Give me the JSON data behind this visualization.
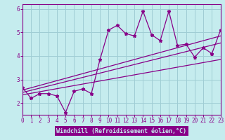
{
  "xlabel": "Windchill (Refroidissement éolien,°C)",
  "bg_color": "#c5ecee",
  "plot_bg_color": "#c5ecee",
  "grid_color": "#9fcdd4",
  "line_color": "#880088",
  "xlabel_bg": "#880088",
  "xlabel_fg": "#c5ecee",
  "spine_color": "#880088",
  "x_data": [
    0,
    1,
    2,
    3,
    4,
    5,
    6,
    7,
    8,
    9,
    10,
    11,
    12,
    13,
    14,
    15,
    16,
    17,
    18,
    19,
    20,
    21,
    22,
    23
  ],
  "y_data": [
    2.65,
    2.2,
    2.4,
    2.4,
    2.3,
    1.6,
    2.5,
    2.6,
    2.4,
    3.85,
    5.1,
    5.3,
    4.95,
    4.85,
    5.9,
    4.9,
    4.65,
    5.9,
    4.45,
    4.5,
    3.95,
    4.35,
    4.1,
    5.1
  ],
  "reg_lines": [
    {
      "x0": 0,
      "y0": 2.55,
      "x1": 23,
      "y1": 4.85
    },
    {
      "x0": 0,
      "y0": 2.45,
      "x1": 23,
      "y1": 4.55
    },
    {
      "x0": 0,
      "y0": 2.35,
      "x1": 23,
      "y1": 3.85
    }
  ],
  "xlim": [
    0,
    23
  ],
  "ylim": [
    1.5,
    6.2
  ],
  "yticks": [
    2,
    3,
    4,
    5,
    6
  ],
  "xticks": [
    0,
    1,
    2,
    3,
    4,
    5,
    6,
    7,
    8,
    9,
    10,
    11,
    12,
    13,
    14,
    15,
    16,
    17,
    18,
    19,
    20,
    21,
    22,
    23
  ],
  "xlabel_fontsize": 6.0,
  "tick_fontsize": 5.5
}
